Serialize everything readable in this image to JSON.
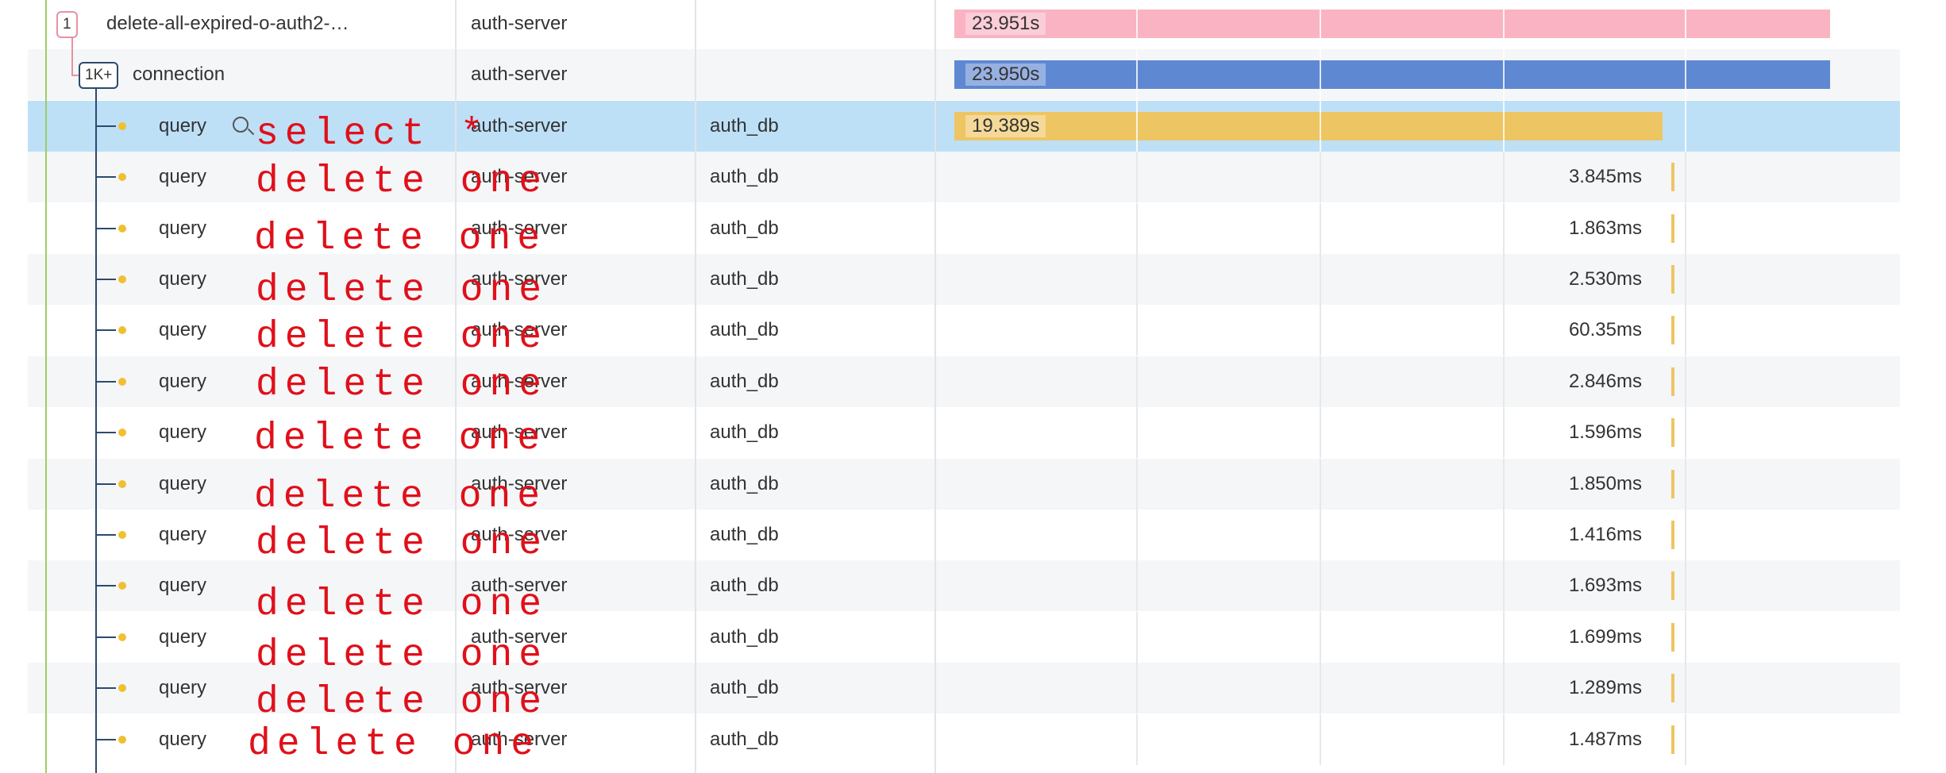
{
  "rows": [
    {
      "badge": "1",
      "name": "delete-all-expired-o-auth2-…",
      "service": "auth-server",
      "duration": "23.951s"
    },
    {
      "badge": "1K+",
      "name": "connection",
      "service": "auth-server",
      "duration": "23.950s"
    },
    {
      "name": "query",
      "note": "select *",
      "service": "auth-server",
      "db": "auth_db",
      "duration": "19.389s"
    },
    {
      "name": "query",
      "note": "delete one",
      "service": "auth-server",
      "db": "auth_db",
      "duration": "3.845ms"
    },
    {
      "name": "query",
      "note": "delete one",
      "service": "auth-server",
      "db": "auth_db",
      "duration": "1.863ms"
    },
    {
      "name": "query",
      "note": "delete one",
      "service": "auth-server",
      "db": "auth_db",
      "duration": "2.530ms"
    },
    {
      "name": "query",
      "note": "delete one",
      "service": "auth-server",
      "db": "auth_db",
      "duration": "60.35ms"
    },
    {
      "name": "query",
      "note": "delete one",
      "service": "auth-server",
      "db": "auth_db",
      "duration": "2.846ms"
    },
    {
      "name": "query",
      "note": "delete one",
      "service": "auth-server",
      "db": "auth_db",
      "duration": "1.596ms"
    },
    {
      "name": "query",
      "note": "delete one",
      "service": "auth-server",
      "db": "auth_db",
      "duration": "1.850ms"
    },
    {
      "name": "query",
      "note": "delete one",
      "service": "auth-server",
      "db": "auth_db",
      "duration": "1.416ms"
    },
    {
      "name": "query",
      "note": "delete one",
      "service": "auth-server",
      "db": "auth_db",
      "duration": "1.693ms"
    },
    {
      "name": "query",
      "note": "delete one",
      "service": "auth-server",
      "db": "auth_db",
      "duration": "1.699ms"
    },
    {
      "name": "query",
      "note": "delete one",
      "service": "auth-server",
      "db": "auth_db",
      "duration": "1.289ms"
    },
    {
      "name": "query",
      "note": "delete one",
      "service": "auth-server",
      "db": "auth_db",
      "duration": "1.487ms"
    }
  ]
}
